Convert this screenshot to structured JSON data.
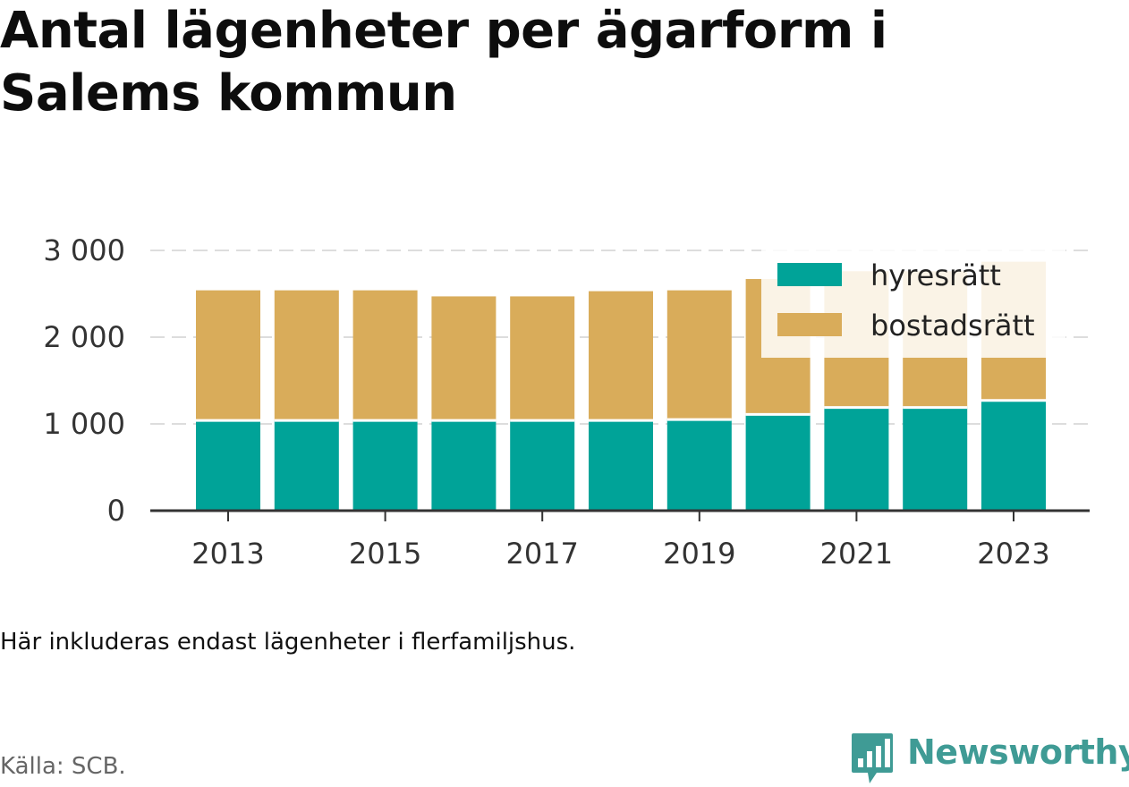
{
  "title": "Antal lägenheter per ägarform i Salems kommun",
  "note": "Här inkluderas endast lägenheter i flerfamiljshus.",
  "source": "Källa: SCB.",
  "brand": {
    "name": "Newsworthy",
    "icon": "bar-chart-speech-bubble-icon",
    "color": "#3f9b95"
  },
  "colors": {
    "hyresratt": "#00a398",
    "bostadsratt": "#d9ac5a",
    "grid": "#dddddd",
    "axis": "#333333"
  },
  "chart_data": {
    "type": "bar",
    "stacked": true,
    "categories": [
      "2013",
      "2014",
      "2015",
      "2016",
      "2017",
      "2018",
      "2019",
      "2020",
      "2021",
      "2022",
      "2023"
    ],
    "x_tick_labels": [
      "2013",
      "2015",
      "2017",
      "2019",
      "2021",
      "2023"
    ],
    "y_ticks": [
      0,
      1000,
      2000,
      3000
    ],
    "y_tick_labels": [
      "0",
      "1 000",
      "2 000",
      "3 000"
    ],
    "ylim": [
      0,
      3000
    ],
    "grid": "horizontal dashed",
    "legend_position": "top-right",
    "series": [
      {
        "name": "hyresrätt",
        "color": "#00a398",
        "values": [
          1040,
          1040,
          1040,
          1040,
          1040,
          1040,
          1050,
          1110,
          1190,
          1190,
          1270
        ]
      },
      {
        "name": "bostadsrätt",
        "color": "#d9ac5a",
        "values": [
          1500,
          1500,
          1500,
          1430,
          1430,
          1490,
          1490,
          1560,
          1570,
          1570,
          1600
        ]
      }
    ]
  }
}
